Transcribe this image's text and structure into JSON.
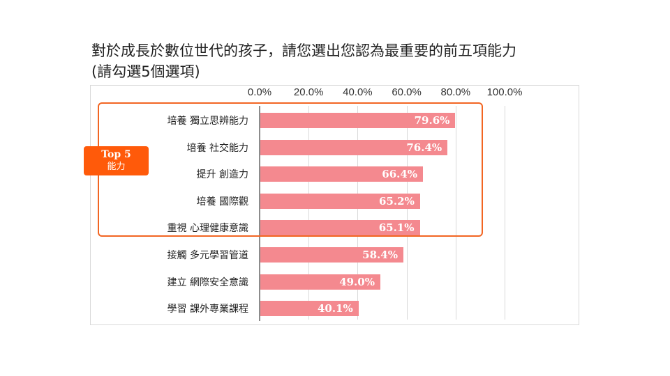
{
  "slide": {
    "title_line1": "對於成長於數位世代的孩子，請您選出您認為最重要的前五項能力",
    "title_line2": "(請勾選5個選項)"
  },
  "badge": {
    "line1": "Top 5",
    "line2": "能力"
  },
  "chart_data": {
    "type": "bar",
    "orientation": "horizontal",
    "title": "",
    "xlabel": "",
    "ylabel": "",
    "xlim": [
      0,
      100
    ],
    "x_ticks": [
      "0.0%",
      "20.0%",
      "40.0%",
      "60.0%",
      "80.0%",
      "100.0%"
    ],
    "x_tick_values": [
      0,
      20,
      40,
      60,
      80,
      100
    ],
    "categories": [
      "培養 獨立思辨能力",
      "培養 社交能力",
      "提升 創造力",
      "培養 國際觀",
      "重視 心理健康意識",
      "接觸 多元學習管道",
      "建立 網際安全意識",
      "學習 課外專業課程"
    ],
    "values": [
      79.6,
      76.4,
      66.4,
      65.2,
      65.1,
      58.4,
      49.0,
      40.1
    ],
    "value_labels": [
      "79.6%",
      "76.4%",
      "66.4%",
      "65.2%",
      "65.1%",
      "58.4%",
      "49.0%",
      "40.1%"
    ],
    "bar_color": "#f4898f",
    "highlight_color": "#f26522",
    "badge_color": "#ff5a0a",
    "highlighted_top_n": 5,
    "grid": true,
    "legend": "none"
  }
}
